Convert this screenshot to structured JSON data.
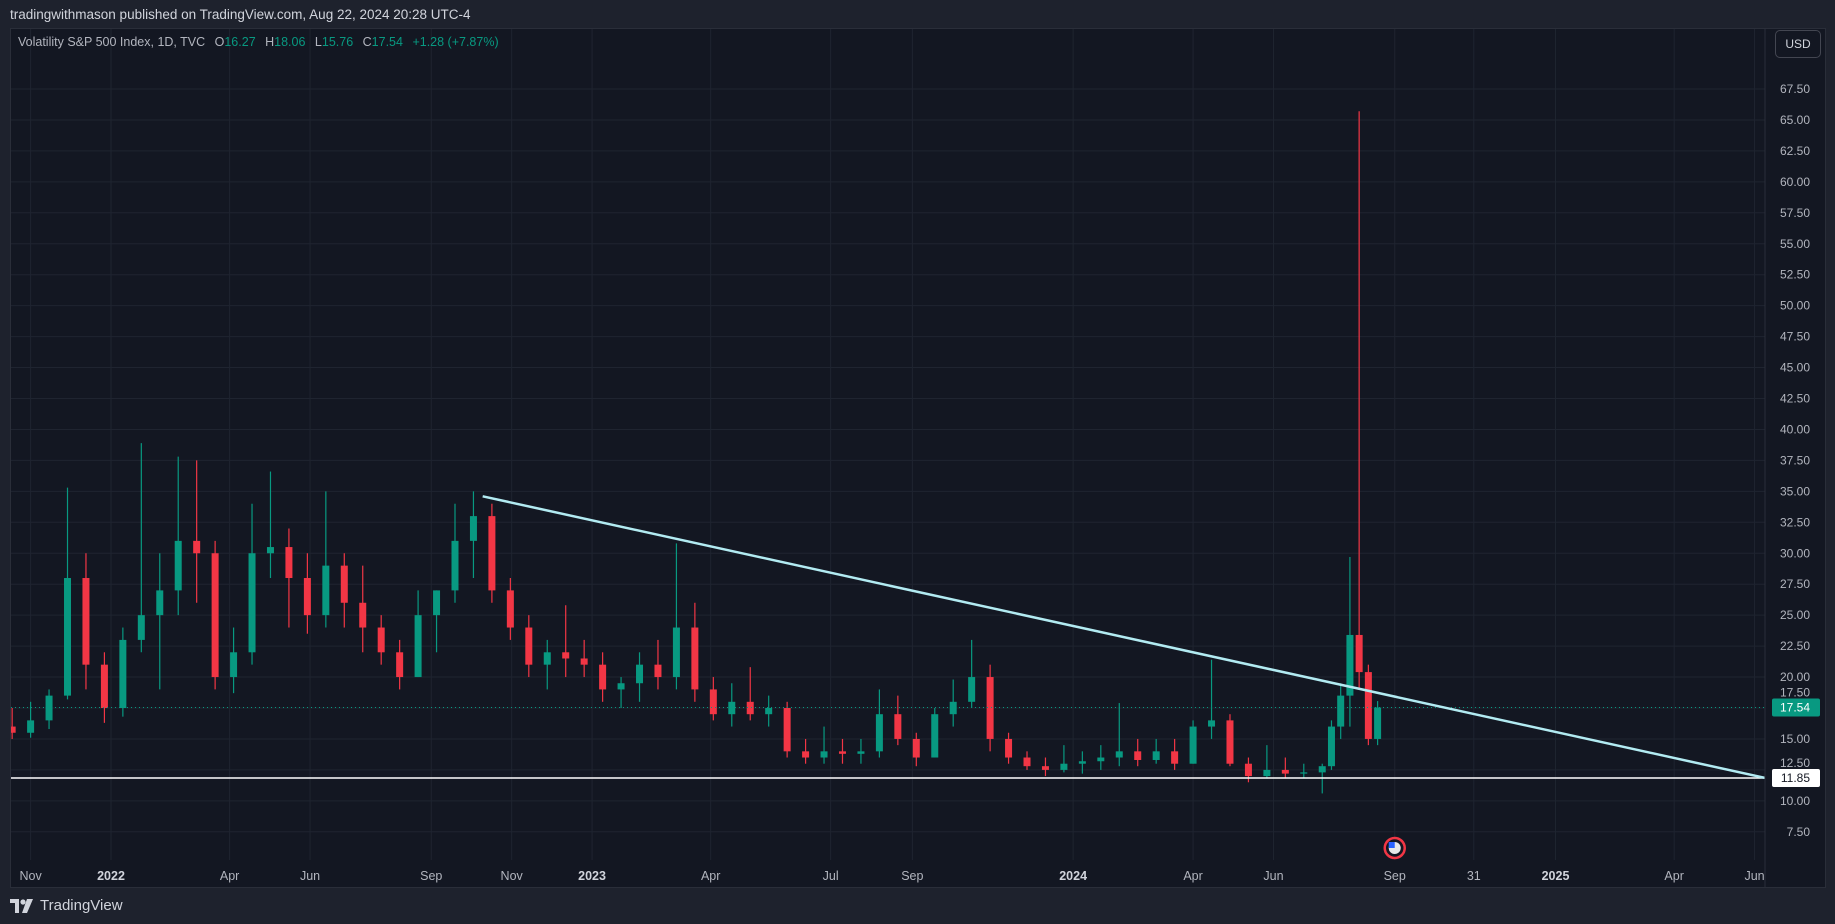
{
  "header": {
    "publisher": "tradingwithmason published on TradingView.com, Aug 22, 2024 20:28 UTC-4"
  },
  "legend": {
    "symbol": "Volatility S&P 500 Index, 1D, TVC",
    "open_label": "O",
    "open": "16.27",
    "high_label": "H",
    "high": "18.06",
    "low_label": "L",
    "low": "15.76",
    "close_label": "C",
    "close": "17.54",
    "change": "+1.28 (+7.87%)"
  },
  "currency_button": "USD",
  "footer": {
    "brand": "TradingView"
  },
  "colors": {
    "up": "#089981",
    "down": "#f23645",
    "trendline": "#b2ebf2",
    "hline": "#ffffff",
    "background": "#131722"
  },
  "chart_data": {
    "type": "candlestick",
    "xlim": [
      "2021-10-14",
      "2025-06-09"
    ],
    "ylim": [
      5.5,
      70
    ],
    "grid": true,
    "y_ticks": [
      "7.50",
      "10.00",
      "12.50",
      "15.00",
      "17.50",
      "20.00",
      "22.50",
      "25.00",
      "27.50",
      "30.00",
      "32.50",
      "35.00",
      "37.50",
      "40.00",
      "42.50",
      "45.00",
      "47.50",
      "50.00",
      "52.50",
      "55.00",
      "57.50",
      "60.00",
      "62.50",
      "65.00",
      "67.50"
    ],
    "x_ticks": [
      {
        "date": "2021-11-01",
        "label": "Nov",
        "year": false
      },
      {
        "date": "2022-01-01",
        "label": "2022",
        "year": true
      },
      {
        "date": "2022-04-01",
        "label": "Apr",
        "year": false
      },
      {
        "date": "2022-06-01",
        "label": "Jun",
        "year": false
      },
      {
        "date": "2022-09-01",
        "label": "Sep",
        "year": false
      },
      {
        "date": "2022-11-01",
        "label": "Nov",
        "year": false
      },
      {
        "date": "2023-01-01",
        "label": "2023",
        "year": true
      },
      {
        "date": "2023-04-01",
        "label": "Apr",
        "year": false
      },
      {
        "date": "2023-07-01",
        "label": "Jul",
        "year": false
      },
      {
        "date": "2023-09-01",
        "label": "Sep",
        "year": false
      },
      {
        "date": "2024-01-01",
        "label": "2024",
        "year": true
      },
      {
        "date": "2024-04-01",
        "label": "Apr",
        "year": false
      },
      {
        "date": "2024-06-01",
        "label": "Jun",
        "year": false
      },
      {
        "date": "2024-09-01",
        "label": "Sep",
        "year": false
      },
      {
        "date": "2024-10-31",
        "label": "31",
        "year": false
      },
      {
        "date": "2025-01-01",
        "label": "2025",
        "year": true
      },
      {
        "date": "2025-04-01",
        "label": "Apr",
        "year": false
      },
      {
        "date": "2025-06-01",
        "label": "Jun",
        "year": false
      }
    ],
    "candles": [
      [
        "2021-10-18",
        16,
        17.5,
        15,
        15.5
      ],
      [
        "2021-11-01",
        15.5,
        18,
        15.1,
        16.5
      ],
      [
        "2021-11-15",
        16.5,
        19,
        15.8,
        18.5
      ],
      [
        "2021-11-29",
        18.5,
        35.3,
        18.2,
        28
      ],
      [
        "2021-12-13",
        28,
        30,
        19,
        21
      ],
      [
        "2021-12-27",
        21,
        22,
        16.3,
        17.5
      ],
      [
        "2022-01-10",
        17.5,
        24,
        16.8,
        23
      ],
      [
        "2022-01-24",
        23,
        38.9,
        22,
        25
      ],
      [
        "2022-02-07",
        25,
        30,
        19,
        27
      ],
      [
        "2022-02-21",
        27,
        37.8,
        25,
        31
      ],
      [
        "2022-03-07",
        31,
        37.5,
        26,
        30
      ],
      [
        "2022-03-21",
        30,
        31,
        19,
        20
      ],
      [
        "2022-04-04",
        20,
        24,
        18.7,
        22
      ],
      [
        "2022-04-18",
        22,
        34,
        21,
        30
      ],
      [
        "2022-05-02",
        30,
        36.6,
        28,
        30.5
      ],
      [
        "2022-05-16",
        30.5,
        32,
        24,
        28
      ],
      [
        "2022-05-30",
        28,
        30,
        23.5,
        25
      ],
      [
        "2022-06-13",
        25,
        35,
        24,
        29
      ],
      [
        "2022-06-27",
        29,
        30,
        24,
        26
      ],
      [
        "2022-07-11",
        26,
        29,
        22,
        24
      ],
      [
        "2022-07-25",
        24,
        25,
        21,
        22
      ],
      [
        "2022-08-08",
        22,
        23,
        19,
        20
      ],
      [
        "2022-08-22",
        20,
        27,
        20,
        25
      ],
      [
        "2022-09-05",
        25,
        27,
        22,
        27
      ],
      [
        "2022-09-19",
        27,
        34,
        26,
        31
      ],
      [
        "2022-10-03",
        31,
        35,
        28,
        33
      ],
      [
        "2022-10-17",
        33,
        34,
        26,
        27
      ],
      [
        "2022-10-31",
        27,
        28,
        23,
        24
      ],
      [
        "2022-11-14",
        24,
        25,
        20,
        21
      ],
      [
        "2022-11-28",
        21,
        23,
        19,
        22
      ],
      [
        "2022-12-12",
        22,
        25.8,
        20,
        21.5
      ],
      [
        "2022-12-26",
        21.5,
        23,
        20,
        21
      ],
      [
        "2023-01-09",
        21,
        22,
        18,
        19
      ],
      [
        "2023-01-23",
        19,
        20,
        17.5,
        19.5
      ],
      [
        "2023-02-06",
        19.5,
        22,
        18,
        21
      ],
      [
        "2023-02-20",
        21,
        23,
        19,
        20
      ],
      [
        "2023-03-06",
        20,
        30.8,
        19,
        24
      ],
      [
        "2023-03-20",
        24,
        26,
        18,
        19
      ],
      [
        "2023-04-03",
        19,
        20,
        16.5,
        17
      ],
      [
        "2023-04-17",
        17,
        19.5,
        16,
        18
      ],
      [
        "2023-05-01",
        18,
        20.8,
        16.5,
        17
      ],
      [
        "2023-05-15",
        17,
        18.5,
        16,
        17.5
      ],
      [
        "2023-05-29",
        17.5,
        18,
        13.5,
        14
      ],
      [
        "2023-06-12",
        14,
        15,
        13,
        13.5
      ],
      [
        "2023-06-26",
        13.5,
        16,
        13,
        14
      ],
      [
        "2023-07-10",
        14,
        15,
        13,
        13.8
      ],
      [
        "2023-07-24",
        13.8,
        15,
        13,
        14
      ],
      [
        "2023-08-07",
        14,
        19,
        13.5,
        17
      ],
      [
        "2023-08-21",
        17,
        18.5,
        14.5,
        15
      ],
      [
        "2023-09-04",
        15,
        15.5,
        12.8,
        13.5
      ],
      [
        "2023-09-18",
        13.5,
        17.5,
        13.5,
        17
      ],
      [
        "2023-10-02",
        17,
        19.8,
        16,
        18
      ],
      [
        "2023-10-16",
        18,
        23,
        17.5,
        20
      ],
      [
        "2023-10-30",
        20,
        21,
        14,
        15
      ],
      [
        "2023-11-13",
        15,
        15.5,
        13,
        13.5
      ],
      [
        "2023-11-27",
        13.5,
        14,
        12.5,
        12.8
      ],
      [
        "2023-12-11",
        12.8,
        13.5,
        12,
        12.5
      ],
      [
        "2023-12-25",
        12.5,
        14.5,
        12.3,
        13
      ],
      [
        "2024-01-08",
        13,
        14,
        12.2,
        13.2
      ],
      [
        "2024-01-22",
        13.2,
        14.5,
        12.5,
        13.5
      ],
      [
        "2024-02-05",
        13.5,
        17.9,
        12.8,
        14
      ],
      [
        "2024-02-19",
        14,
        15,
        12.8,
        13.3
      ],
      [
        "2024-03-04",
        13.3,
        15,
        13,
        14
      ],
      [
        "2024-03-18",
        14,
        15,
        12.5,
        13
      ],
      [
        "2024-04-01",
        13,
        16.5,
        13,
        16
      ],
      [
        "2024-04-15",
        16,
        21.4,
        15,
        16.5
      ],
      [
        "2024-04-29",
        16.5,
        17,
        12.8,
        13
      ],
      [
        "2024-05-13",
        13,
        13.5,
        11.5,
        12
      ],
      [
        "2024-05-27",
        12,
        14.5,
        11.8,
        12.5
      ],
      [
        "2024-06-10",
        12.5,
        13.5,
        11.8,
        12.2
      ],
      [
        "2024-06-24",
        12.2,
        13,
        11.8,
        12.3
      ],
      [
        "2024-07-08",
        12.3,
        13,
        10.6,
        12.8
      ],
      [
        "2024-07-15",
        12.8,
        16.5,
        12.5,
        16
      ],
      [
        "2024-07-22",
        16,
        19.5,
        15,
        18.5
      ],
      [
        "2024-07-29",
        18.5,
        29.7,
        16,
        23.4
      ],
      [
        "2024-08-05",
        23.4,
        65.7,
        19,
        20.4
      ],
      [
        "2024-08-12",
        20.4,
        21,
        14.5,
        15
      ],
      [
        "2024-08-19",
        15,
        18.06,
        14.5,
        17.54
      ]
    ],
    "last_price": {
      "value": 17.54,
      "label": "17.54"
    },
    "horizontal_line": {
      "value": 11.85,
      "label": "11.85"
    },
    "trendline": [
      {
        "date": "2022-10-10",
        "value": 34.6
      },
      {
        "date": "2025-06-09",
        "value": 11.85
      }
    ],
    "event_marker": {
      "date": "2024-09-01",
      "icon": "us-flag-event-icon"
    }
  }
}
